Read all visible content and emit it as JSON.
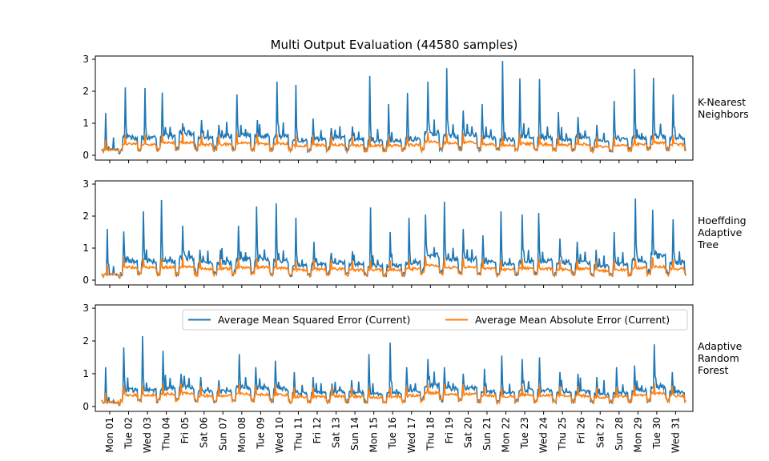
{
  "title": "Multi Output Evaluation (44580 samples)",
  "chart_data": {
    "type": "line",
    "title": "Multi Output Evaluation (44580 samples)",
    "x_tick_labels": [
      "Mon 01",
      "Tue 02",
      "Wed 03",
      "Thu 04",
      "Fri 05",
      "Sat 06",
      "Sun 07",
      "Mon 08",
      "Tue 09",
      "Wed 10",
      "Thu 11",
      "Fri 12",
      "Sat 13",
      "Sun 14",
      "Mon 15",
      "Tue 16",
      "Wed 17",
      "Thu 18",
      "Fri 19",
      "Sat 20",
      "Sun 21",
      "Mon 22",
      "Tue 23",
      "Wed 24",
      "Thu 25",
      "Fri 26",
      "Sat 27",
      "Sun 28",
      "Mon 29",
      "Tue 30",
      "Wed 31"
    ],
    "ylim": [
      -0.15,
      3.1
    ],
    "y_ticks": [
      0,
      1,
      2,
      3
    ],
    "legend": {
      "placement": "upper right of bottom panel",
      "entries": [
        "Average Mean Squared Error (Current)",
        "Average Mean Absolute Error (Current)"
      ]
    },
    "colors": {
      "mse": "#1f77b4",
      "mae": "#ff7f0e"
    },
    "panels": [
      {
        "label": [
          "K-Nearest",
          "Neighbors"
        ],
        "series": [
          {
            "name": "Average Mean Squared Error (Current)",
            "values": [
              0.18,
              0.55,
              0.55,
              0.6,
              0.7,
              0.55,
              0.6,
              0.65,
              0.6,
              0.6,
              0.45,
              0.5,
              0.55,
              0.5,
              0.45,
              0.45,
              0.5,
              0.7,
              0.6,
              0.65,
              0.55,
              0.5,
              0.6,
              0.55,
              0.5,
              0.55,
              0.45,
              0.5,
              0.55,
              0.6,
              0.55
            ],
            "peaks": [
              1.32,
              2.12,
              2.1,
              1.96,
              1.0,
              1.1,
              0.95,
              1.9,
              1.1,
              2.3,
              2.2,
              1.15,
              0.85,
              0.9,
              2.48,
              1.6,
              1.95,
              2.3,
              2.72,
              1.4,
              1.6,
              2.95,
              2.4,
              2.38,
              1.35,
              1.2,
              0.95,
              1.7,
              2.7,
              2.42,
              1.9
            ]
          },
          {
            "name": "Average Mean Absolute Error (Current)",
            "values": [
              0.18,
              0.35,
              0.35,
              0.38,
              0.4,
              0.33,
              0.35,
              0.38,
              0.36,
              0.36,
              0.3,
              0.32,
              0.33,
              0.3,
              0.3,
              0.3,
              0.32,
              0.42,
              0.38,
              0.4,
              0.34,
              0.32,
              0.36,
              0.34,
              0.32,
              0.34,
              0.28,
              0.3,
              0.34,
              0.38,
              0.34
            ]
          }
        ]
      },
      {
        "label": [
          "Hoeffding",
          "Adaptive",
          "Tree"
        ],
        "series": [
          {
            "name": "Average Mean Squared Error (Current)",
            "values": [
              0.18,
              0.6,
              0.6,
              0.6,
              0.7,
              0.55,
              0.55,
              0.65,
              0.65,
              0.6,
              0.45,
              0.5,
              0.55,
              0.5,
              0.45,
              0.45,
              0.55,
              0.8,
              0.65,
              0.65,
              0.55,
              0.5,
              0.6,
              0.6,
              0.55,
              0.55,
              0.45,
              0.5,
              0.6,
              0.75,
              0.55
            ],
            "peaks": [
              1.6,
              1.52,
              2.15,
              2.5,
              1.7,
              0.95,
              0.95,
              1.7,
              2.3,
              2.4,
              1.95,
              1.2,
              0.85,
              0.9,
              2.27,
              1.5,
              1.95,
              2.05,
              2.45,
              1.6,
              1.4,
              2.15,
              2.05,
              2.1,
              1.3,
              1.2,
              0.95,
              1.5,
              2.55,
              2.2,
              1.9
            ]
          },
          {
            "name": "Average Mean Absolute Error (Current)",
            "values": [
              0.18,
              0.4,
              0.4,
              0.4,
              0.42,
              0.35,
              0.36,
              0.4,
              0.4,
              0.38,
              0.32,
              0.34,
              0.35,
              0.32,
              0.32,
              0.32,
              0.35,
              0.45,
              0.4,
              0.4,
              0.35,
              0.33,
              0.38,
              0.36,
              0.33,
              0.35,
              0.3,
              0.32,
              0.38,
              0.42,
              0.35
            ]
          }
        ]
      },
      {
        "label": [
          "Adaptive",
          "Random",
          "Forest"
        ],
        "series": [
          {
            "name": "Average Mean Squared Error (Current)",
            "values": [
              0.12,
              0.5,
              0.5,
              0.55,
              0.6,
              0.45,
              0.45,
              0.6,
              0.55,
              0.55,
              0.4,
              0.42,
              0.45,
              0.42,
              0.38,
              0.4,
              0.48,
              0.65,
              0.55,
              0.55,
              0.45,
              0.42,
              0.5,
              0.48,
              0.45,
              0.45,
              0.38,
              0.4,
              0.5,
              0.6,
              0.45
            ],
            "peaks": [
              1.2,
              1.8,
              2.15,
              1.7,
              1.0,
              0.9,
              0.8,
              1.6,
              1.2,
              1.4,
              1.05,
              0.9,
              0.7,
              0.8,
              1.6,
              1.95,
              1.2,
              1.45,
              1.2,
              1.0,
              1.15,
              1.55,
              1.45,
              1.5,
              1.05,
              1.0,
              0.9,
              1.2,
              1.25,
              1.9,
              1.05
            ]
          },
          {
            "name": "Average Mean Absolute Error (Current)",
            "values": [
              0.12,
              0.35,
              0.35,
              0.38,
              0.4,
              0.33,
              0.33,
              0.38,
              0.36,
              0.36,
              0.3,
              0.3,
              0.32,
              0.3,
              0.28,
              0.3,
              0.33,
              0.42,
              0.38,
              0.38,
              0.33,
              0.3,
              0.35,
              0.34,
              0.32,
              0.33,
              0.28,
              0.3,
              0.35,
              0.4,
              0.33
            ]
          }
        ]
      }
    ]
  }
}
